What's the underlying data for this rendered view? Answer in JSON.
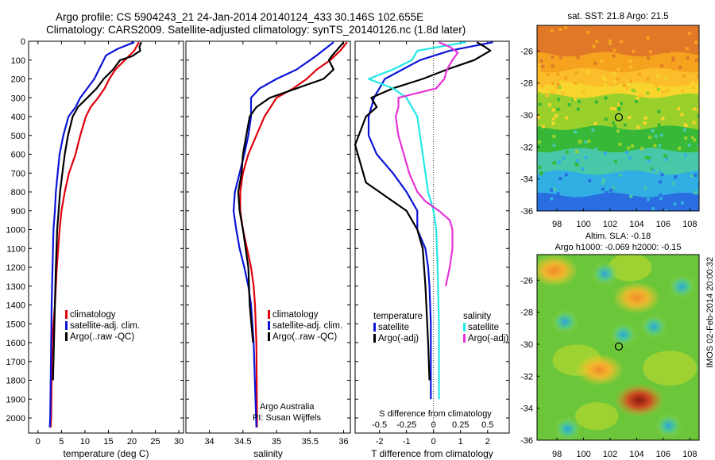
{
  "header": {
    "line1": "Argo profile: CS 5904243_21 24-Jan-2014 20140124_433 30.146S 102.655E",
    "line2": "Climatology: CARS2009. Satellite-adjusted climatology: synTS_20140126.nc (1.8d later)"
  },
  "footer": {
    "credit1": "Argo Australia",
    "credit2": "PI: Susan Wijffels",
    "vertical_stamp": "IMOS 02-Feb-2014 20:00:32"
  },
  "colors": {
    "climatology": "#e0000a",
    "satellite": "#0a14d8",
    "argo": "#000000",
    "sal_satellite": "#22e8e8",
    "sal_argo": "#e832d8"
  },
  "chart_data": [
    {
      "type": "line",
      "xlabel": "temperature (deg C)",
      "xlim": [
        -2,
        31
      ],
      "xticks": [
        0,
        5,
        10,
        15,
        20,
        25,
        30
      ],
      "ylim": [
        2080,
        0
      ],
      "yticks": [
        0,
        100,
        200,
        300,
        400,
        500,
        600,
        700,
        800,
        900,
        1000,
        1100,
        1200,
        1300,
        1400,
        1500,
        1600,
        1700,
        1800,
        1900,
        2000
      ],
      "legend": {
        "position": "bottom-center",
        "entries": [
          "climatology",
          "satellite-adj. clim.",
          "Argo(..raw -QC)"
        ]
      },
      "series": [
        {
          "name": "climatology",
          "color": "climatology",
          "x": [
            21.5,
            20.5,
            18.5,
            16.5,
            15.2,
            14.2,
            12.8,
            11.2,
            10.2,
            9.0,
            8.0,
            6.6,
            5.7,
            5.0,
            4.6,
            4.0,
            3.6,
            3.3,
            3.0,
            2.9,
            2.8,
            2.7
          ],
          "y": [
            5,
            50,
            100,
            150,
            200,
            250,
            300,
            350,
            400,
            500,
            600,
            700,
            800,
            900,
            1000,
            1200,
            1400,
            1500,
            1600,
            1800,
            2000,
            2050
          ]
        },
        {
          "name": "satellite-adj. clim.",
          "color": "satellite",
          "x": [
            20.5,
            17.0,
            14.5,
            14.0,
            13.0,
            12.0,
            10.5,
            9.0,
            8.0,
            6.5,
            5.4,
            4.6,
            4.2,
            3.8,
            3.6,
            3.3,
            3.1,
            2.9,
            2.8,
            2.7,
            2.6,
            2.5
          ],
          "y": [
            5,
            40,
            75,
            100,
            150,
            200,
            250,
            300,
            350,
            400,
            500,
            600,
            700,
            800,
            900,
            1000,
            1200,
            1400,
            1600,
            1800,
            2000,
            2050
          ]
        },
        {
          "name": "Argo(..raw -QC)",
          "color": "argo",
          "x": [
            22.0,
            21.6,
            21.8,
            20.0,
            17.5,
            16.0,
            14.0,
            12.5,
            10.5,
            8.5,
            7.4,
            6.4,
            5.7,
            5.2,
            4.7,
            4.4,
            4.1,
            3.8,
            3.6,
            3.4,
            3.2
          ],
          "y": [
            5,
            30,
            50,
            80,
            100,
            150,
            200,
            250,
            300,
            350,
            400,
            500,
            600,
            700,
            800,
            900,
            1000,
            1200,
            1400,
            1600,
            1800
          ]
        }
      ]
    },
    {
      "type": "line",
      "xlabel": "salinity",
      "xlim": [
        33.65,
        36.1
      ],
      "xticks": [
        34,
        34.5,
        35,
        35.5,
        36
      ],
      "ylim": [
        2080,
        0
      ],
      "legend": {
        "position": "bottom-center",
        "entries": [
          "climatology",
          "satellite-adj. clim.",
          "Argo(..raw -QC)"
        ]
      },
      "series": [
        {
          "name": "climatology",
          "color": "climatology",
          "x": [
            36.05,
            35.95,
            35.8,
            35.6,
            35.45,
            35.25,
            35.0,
            34.82,
            34.7,
            34.58,
            34.5,
            34.46,
            34.46,
            34.5,
            34.56,
            34.62,
            34.66,
            34.68,
            34.7,
            34.71
          ],
          "y": [
            5,
            50,
            100,
            150,
            200,
            250,
            300,
            400,
            500,
            600,
            700,
            800,
            900,
            1000,
            1100,
            1200,
            1300,
            1400,
            1600,
            2050
          ]
        },
        {
          "name": "satellite-adj. clim.",
          "color": "satellite",
          "x": [
            35.85,
            35.6,
            35.5,
            35.3,
            35.0,
            34.75,
            34.62,
            34.62,
            34.58,
            34.52,
            34.45,
            34.38,
            34.36,
            34.4,
            34.45,
            34.52,
            34.58,
            34.62,
            34.66,
            34.7
          ],
          "y": [
            5,
            75,
            100,
            150,
            200,
            250,
            300,
            400,
            500,
            600,
            700,
            800,
            900,
            1000,
            1100,
            1200,
            1300,
            1400,
            1600,
            2050
          ]
        },
        {
          "name": "Argo(..raw -QC)",
          "color": "argo",
          "x": [
            36.0,
            35.82,
            35.78,
            35.85,
            35.7,
            35.3,
            34.9,
            34.7,
            34.6,
            34.55,
            34.5,
            34.48,
            34.43,
            34.45,
            34.5,
            34.58,
            34.6,
            34.65
          ],
          "y": [
            5,
            80,
            100,
            150,
            200,
            250,
            300,
            350,
            400,
            500,
            600,
            700,
            800,
            900,
            1000,
            1200,
            1400,
            1600
          ]
        }
      ]
    },
    {
      "type": "line",
      "xlabel": "T difference from climatology",
      "xlabel_top": "S difference from climatology",
      "xlim": [
        -2.9,
        2.8
      ],
      "xticks": [
        -2,
        -1,
        0,
        1,
        2
      ],
      "xticks_top": [
        {
          "label": "-0.5",
          "at": -2
        },
        {
          "label": "-0.25",
          "at": -1
        },
        {
          "label": "0",
          "at": 0
        },
        {
          "label": "0.25",
          "at": 1
        },
        {
          "label": "0.5",
          "at": 2
        }
      ],
      "ylim": [
        2080,
        0
      ],
      "legend": {
        "position": "bottom",
        "entries": [
          {
            "group": "temperature",
            "items": [
              "satellite",
              "Argo(-adj)"
            ]
          },
          {
            "group": "salinity",
            "items": [
              "satellite",
              "Argo(-adj)"
            ]
          }
        ]
      },
      "series": [
        {
          "name": "satellite",
          "group": "temperature",
          "color": "satellite",
          "x": [
            2.2,
            0.6,
            -0.5,
            -1.8,
            -2.2,
            -2.4,
            -2.4,
            -2.1,
            -1.5,
            -1.0,
            -0.6,
            -0.6,
            -0.3,
            -0.2,
            -0.15,
            -0.1,
            -0.1
          ],
          "y": [
            5,
            50,
            100,
            200,
            300,
            400,
            500,
            600,
            700,
            800,
            900,
            1000,
            1100,
            1200,
            1300,
            1500,
            1900
          ]
        },
        {
          "name": "Argo(-adj)",
          "group": "temperature",
          "color": "argo",
          "x": [
            1.6,
            1.9,
            2.1,
            1.5,
            0.5,
            -0.4,
            -1.5,
            -2.3,
            -2.1,
            -2.5,
            -2.9,
            -2.5,
            -2.0,
            -1.5,
            -1.0,
            -0.6,
            -0.4,
            -0.3,
            -0.2,
            -0.15
          ],
          "y": [
            5,
            30,
            50,
            100,
            150,
            200,
            250,
            300,
            350,
            400,
            550,
            750,
            800,
            850,
            900,
            1000,
            1100,
            1300,
            1600,
            1800
          ]
        },
        {
          "name": "satellite",
          "group": "salinity",
          "color": "sal_satellite",
          "x": [
            1.2,
            -0.6,
            -0.8,
            -1.5,
            -2.4,
            -1.5,
            -1.0,
            -0.6,
            -0.5,
            -0.4,
            -0.3,
            -0.2,
            0.0,
            0.1,
            0.15,
            0.2,
            0.2
          ],
          "y": [
            5,
            50,
            100,
            150,
            200,
            250,
            300,
            400,
            500,
            600,
            700,
            800,
            900,
            1000,
            1200,
            1500,
            1900
          ]
        },
        {
          "name": "Argo(-adj)",
          "group": "salinity",
          "color": "sal_argo",
          "x": [
            0.2,
            0.6,
            0.9,
            0.7,
            0.5,
            0.4,
            0.1,
            -1.3,
            -1.3,
            -1.4,
            -1.3,
            -1.1,
            -0.9,
            -0.6,
            -0.3,
            0.2,
            0.6,
            0.7,
            0.7,
            0.6,
            0.45
          ],
          "y": [
            5,
            30,
            60,
            100,
            150,
            200,
            250,
            300,
            350,
            400,
            500,
            600,
            700,
            800,
            850,
            900,
            950,
            1000,
            1100,
            1200,
            1300
          ]
        }
      ]
    },
    {
      "type": "heatmap",
      "title": "sat. SST: 21.8  Argo: 21.5",
      "xlim": [
        96.5,
        108.7
      ],
      "xticks": [
        98,
        100,
        102,
        104,
        106,
        108
      ],
      "ylim": [
        -36,
        -24.4
      ],
      "yticks": [
        -26,
        -28,
        -30,
        -32,
        -34,
        -36
      ],
      "marker": {
        "lon": 102.655,
        "lat": -30.146
      },
      "colors": [
        "#e07828",
        "#f5a21f",
        "#fbbe2a",
        "#f7d52c",
        "#9ad02c",
        "#38b838",
        "#48c8a8",
        "#31aee3",
        "#2a6de0"
      ],
      "bands": [
        -24.4,
        -26.2,
        -27.2,
        -28.1,
        -28.8,
        -30.8,
        -32.2,
        -33.6,
        -35.0,
        -36.0
      ]
    },
    {
      "type": "heatmap",
      "title": "Altim. SLA: -0.18",
      "subtitle": "Argo h1000: -0.069  h2000: -0.15",
      "xlim": [
        96.5,
        108.7
      ],
      "xticks": [
        98,
        100,
        102,
        104,
        106,
        108
      ],
      "ylim": [
        -36,
        -24.4
      ],
      "yticks": [
        -26,
        -28,
        -30,
        -32,
        -34,
        -36
      ],
      "marker": {
        "lon": 102.655,
        "lat": -30.146
      },
      "features": [
        {
          "lon": 97.8,
          "lat": -25.4,
          "kind": "high"
        },
        {
          "lon": 98.6,
          "lat": -28.6,
          "kind": "low"
        },
        {
          "lon": 101.6,
          "lat": -25.6,
          "kind": "low"
        },
        {
          "lon": 104.0,
          "lat": -27.1,
          "kind": "high"
        },
        {
          "lon": 107.4,
          "lat": -26.4,
          "kind": "low"
        },
        {
          "lon": 105.3,
          "lat": -28.9,
          "kind": "low"
        },
        {
          "lon": 103.0,
          "lat": -29.4,
          "kind": "low"
        },
        {
          "lon": 104.2,
          "lat": -33.5,
          "kind": "strong-high"
        },
        {
          "lon": 106.4,
          "lat": -35.1,
          "kind": "low"
        },
        {
          "lon": 98.8,
          "lat": -35.3,
          "kind": "low"
        },
        {
          "lon": 101.2,
          "lat": -31.6,
          "kind": "high"
        }
      ]
    }
  ]
}
